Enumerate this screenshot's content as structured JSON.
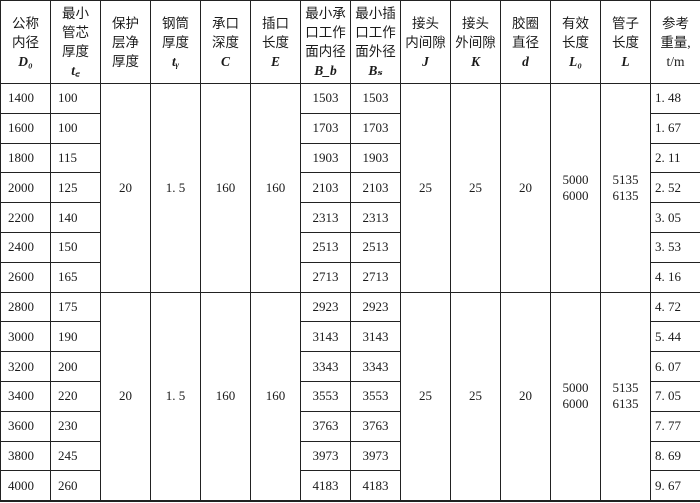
{
  "headers": [
    {
      "text": "公称\n内径",
      "sym": "D₀"
    },
    {
      "text": "最小\n管芯\n厚度",
      "sym": "t꜀"
    },
    {
      "text": "保护\n层净\n厚度",
      "sym": ""
    },
    {
      "text": "钢筒\n厚度",
      "sym": "tᵧ"
    },
    {
      "text": "承口\n深度",
      "sym": "C"
    },
    {
      "text": "插口\n长度",
      "sym": "E"
    },
    {
      "text": "最小承\n口工作\n面内径",
      "sym": "B_b"
    },
    {
      "text": "最小插\n口工作\n面外径",
      "sym": "Bₛ"
    },
    {
      "text": "接头\n内间隙",
      "sym": "J"
    },
    {
      "text": "接头\n外间隙",
      "sym": "K"
    },
    {
      "text": "胶圈\n直径",
      "sym": "d"
    },
    {
      "text": "有效\n长度",
      "sym": "L₀"
    },
    {
      "text": "管子\n长度",
      "sym": "L"
    },
    {
      "text": "参考\n重量,\nt/m",
      "sym": ""
    }
  ],
  "groups": [
    {
      "shared": {
        "protect": "20",
        "steel": "1. 5",
        "socket_depth": "160",
        "spigot_len": "160",
        "J": "25",
        "K": "25",
        "d": "20",
        "L0": "5000\n6000",
        "L": "5135\n6135"
      },
      "rows": [
        [
          "1400",
          "100",
          "1503",
          "1503",
          "1. 48"
        ],
        [
          "1600",
          "100",
          "1703",
          "1703",
          "1. 67"
        ],
        [
          "1800",
          "115",
          "1903",
          "1903",
          "2. 11"
        ],
        [
          "2000",
          "125",
          "2103",
          "2103",
          "2. 52"
        ],
        [
          "2200",
          "140",
          "2313",
          "2313",
          "3. 05"
        ],
        [
          "2400",
          "150",
          "2513",
          "2513",
          "3. 53"
        ],
        [
          "2600",
          "165",
          "2713",
          "2713",
          "4. 16"
        ]
      ]
    },
    {
      "shared": {
        "protect": "20",
        "steel": "1. 5",
        "socket_depth": "160",
        "spigot_len": "160",
        "J": "25",
        "K": "25",
        "d": "20",
        "L0": "5000\n6000",
        "L": "5135\n6135"
      },
      "rows": [
        [
          "2800",
          "175",
          "2923",
          "2923",
          "4. 72"
        ],
        [
          "3000",
          "190",
          "3143",
          "3143",
          "5. 44"
        ],
        [
          "3200",
          "200",
          "3343",
          "3343",
          "6. 07"
        ],
        [
          "3400",
          "220",
          "3553",
          "3553",
          "7. 05"
        ],
        [
          "3600",
          "230",
          "3763",
          "3763",
          "7. 77"
        ],
        [
          "3800",
          "245",
          "3973",
          "3973",
          "8. 69"
        ],
        [
          "4000",
          "260",
          "4183",
          "4183",
          "9. 67"
        ]
      ]
    }
  ]
}
